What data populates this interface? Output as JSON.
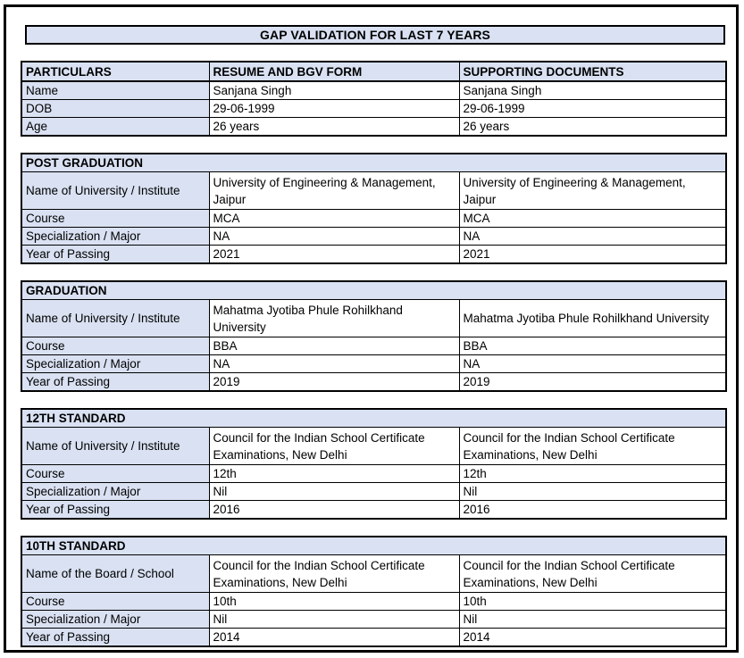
{
  "title": "GAP VALIDATION FOR LAST 7 YEARS",
  "colors": {
    "header_fill": "#D9E1F2",
    "border": "#000000",
    "page_bg": "#FFFFFF"
  },
  "particulars": {
    "headers": [
      "PARTICULARS",
      "RESUME AND BGV FORM",
      "SUPPORTING DOCUMENTS"
    ],
    "rows": [
      {
        "label": "Name",
        "resume": "Sanjana Singh",
        "supporting": "Sanjana Singh"
      },
      {
        "label": "DOB",
        "resume": "29-06-1999",
        "supporting": "29-06-1999"
      },
      {
        "label": "Age",
        "resume": "26 years",
        "supporting": "26 years"
      }
    ]
  },
  "sections": [
    {
      "title": "POST GRADUATION",
      "rows": [
        {
          "label": "Name of University / Institute",
          "resume": "University of Engineering & Management, Jaipur",
          "supporting": "University of Engineering & Management, Jaipur"
        },
        {
          "label": "Course",
          "resume": "MCA",
          "supporting": "MCA"
        },
        {
          "label": "Specialization / Major",
          "resume": "NA",
          "supporting": "NA"
        },
        {
          "label": "Year of Passing",
          "resume": "2021",
          "supporting": "2021"
        }
      ]
    },
    {
      "title": "GRADUATION",
      "rows": [
        {
          "label": "Name of University / Institute",
          "resume": "Mahatma Jyotiba Phule Rohilkhand University",
          "supporting": "Mahatma Jyotiba Phule Rohilkhand University"
        },
        {
          "label": "Course",
          "resume": "BBA",
          "supporting": "BBA"
        },
        {
          "label": "Specialization / Major",
          "resume": "NA",
          "supporting": "NA"
        },
        {
          "label": "Year of Passing",
          "resume": "2019",
          "supporting": "2019"
        }
      ]
    },
    {
      "title": "12TH STANDARD",
      "rows": [
        {
          "label": "Name of University / Institute",
          "resume": "Council for the Indian School Certificate Examinations, New Delhi",
          "supporting": "Council for the Indian School Certificate Examinations, New Delhi"
        },
        {
          "label": "Course",
          "resume": "12th",
          "supporting": "12th"
        },
        {
          "label": "Specialization / Major",
          "resume": "Nil",
          "supporting": "Nil"
        },
        {
          "label": "Year of Passing",
          "resume": "2016",
          "supporting": "2016"
        }
      ]
    },
    {
      "title": "10TH STANDARD",
      "rows": [
        {
          "label": "Name of the Board / School",
          "resume": "Council for the Indian School Certificate Examinations, New Delhi",
          "supporting": "Council for the Indian School Certificate Examinations, New Delhi"
        },
        {
          "label": "Course",
          "resume": "10th",
          "supporting": "10th"
        },
        {
          "label": "Specialization / Major",
          "resume": "Nil",
          "supporting": "Nil"
        },
        {
          "label": "Year of Passing",
          "resume": "2014",
          "supporting": "2014"
        }
      ]
    }
  ]
}
